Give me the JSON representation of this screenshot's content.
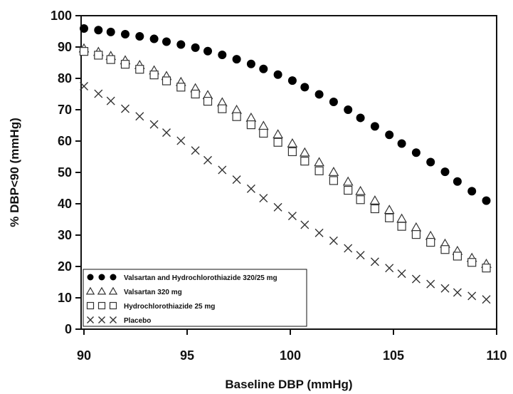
{
  "chart_data": {
    "type": "scatter",
    "xlabel": "Baseline DBP (mmHg)",
    "ylabel": "% DBP<90 (mmHg)",
    "xlim": [
      90,
      110
    ],
    "ylim": [
      0,
      100
    ],
    "xticks": [
      90,
      95,
      100,
      105,
      110
    ],
    "yticks": [
      0,
      10,
      20,
      30,
      40,
      50,
      60,
      70,
      80,
      90,
      100
    ],
    "grid": false,
    "legend_position": "bottom-left",
    "x": [
      90.0,
      90.7,
      91.3,
      92.0,
      92.7,
      93.4,
      94.0,
      94.7,
      95.4,
      96.0,
      96.7,
      97.4,
      98.1,
      98.7,
      99.4,
      100.1,
      100.7,
      101.4,
      102.1,
      102.8,
      103.4,
      104.1,
      104.8,
      105.4,
      106.1,
      106.8,
      107.5,
      108.1,
      108.8,
      109.5
    ],
    "series": [
      {
        "name": "Valsartan and Hydrochlorothiazide 320/25 mg",
        "marker": "filled-circle",
        "values": [
          95.9,
          95.4,
          94.8,
          94.1,
          93.4,
          92.6,
          91.7,
          90.8,
          89.8,
          88.7,
          87.5,
          86.1,
          84.6,
          83.0,
          81.2,
          79.3,
          77.2,
          74.9,
          72.5,
          70.0,
          67.4,
          64.7,
          62.0,
          59.2,
          56.3,
          53.3,
          50.2,
          47.1,
          44.0,
          41.0
        ]
      },
      {
        "name": "Valsartan 320 mg",
        "marker": "open-triangle",
        "values": [
          89.5,
          88.4,
          87.1,
          85.7,
          84.2,
          82.5,
          80.7,
          78.8,
          76.8,
          74.6,
          72.3,
          69.9,
          67.4,
          64.8,
          62.1,
          59.2,
          56.3,
          53.2,
          50.1,
          47.0,
          44.0,
          41.0,
          38.0,
          35.2,
          32.4,
          29.7,
          27.2,
          24.9,
          22.7,
          20.8
        ]
      },
      {
        "name": "Hydrochlorothiazide 25 mg",
        "marker": "open-square",
        "values": [
          88.6,
          87.4,
          86.0,
          84.5,
          82.9,
          81.1,
          79.2,
          77.2,
          75.0,
          72.7,
          70.3,
          67.8,
          65.2,
          62.5,
          59.6,
          56.6,
          53.6,
          50.5,
          47.4,
          44.3,
          41.3,
          38.4,
          35.5,
          32.8,
          30.2,
          27.7,
          25.4,
          23.3,
          21.3,
          19.5
        ]
      },
      {
        "name": "Placebo",
        "marker": "x",
        "values": [
          77.5,
          75.1,
          72.8,
          70.3,
          67.9,
          65.3,
          62.7,
          60.1,
          57.0,
          53.9,
          50.8,
          47.7,
          44.8,
          41.8,
          38.9,
          36.1,
          33.3,
          30.7,
          28.2,
          25.8,
          23.6,
          21.5,
          19.5,
          17.7,
          16.0,
          14.4,
          13.0,
          11.7,
          10.6,
          9.5
        ]
      }
    ]
  }
}
